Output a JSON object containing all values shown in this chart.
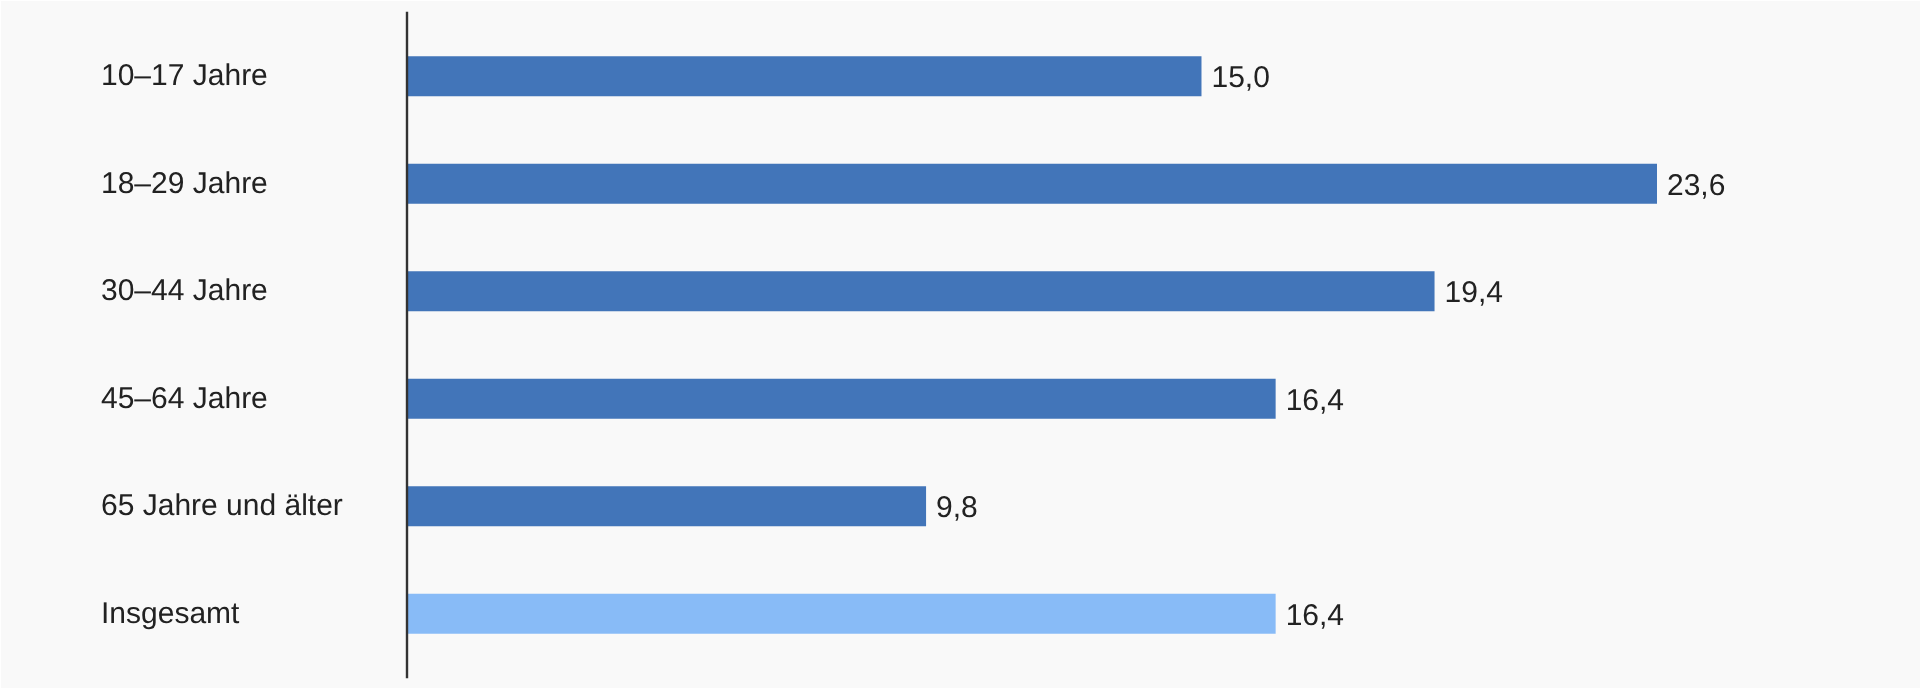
{
  "chart_data": {
    "type": "bar",
    "orientation": "horizontal",
    "categories": [
      "10–17 Jahre",
      "18–29 Jahre",
      "30–44 Jahre",
      "45–64 Jahre",
      "65 Jahre und älter",
      "Insgesamt"
    ],
    "values": [
      15.0,
      23.6,
      19.4,
      16.4,
      9.8,
      16.4
    ],
    "colors": [
      "#4275b9",
      "#4275b9",
      "#4275b9",
      "#4275b9",
      "#4275b9",
      "#88bbf7"
    ],
    "value_labels": [
      "15,0",
      "23,6",
      "19,4",
      "16,4",
      "9,8",
      "16,4"
    ]
  }
}
